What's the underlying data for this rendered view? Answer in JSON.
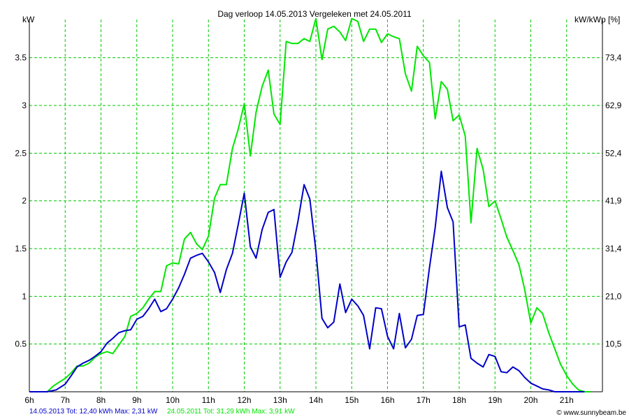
{
  "chart_data": {
    "type": "line",
    "title": "Dag  verloop 14.05.2013   Vergeleken met 24.05.2011",
    "ylabel_left": "kW",
    "ylabel_right": "kW/kWp [%]",
    "x_tick_labels": [
      "6h",
      "7h",
      "8h",
      "9h",
      "10h",
      "11h",
      "12h",
      "13h",
      "14h",
      "15h",
      "16h",
      "17h",
      "18h",
      "19h",
      "20h",
      "21h"
    ],
    "x_tick_hours": [
      6,
      7,
      8,
      9,
      10,
      11,
      12,
      13,
      14,
      15,
      16,
      17,
      18,
      19,
      20,
      21
    ],
    "xlim": [
      6,
      22
    ],
    "ylim": [
      0,
      3.9
    ],
    "y_tick_values": [
      0.5,
      1,
      1.5,
      2,
      2.5,
      3,
      3.5
    ],
    "y_tick_labels": [
      "0.5",
      "1",
      "1.5",
      "2",
      "2.5",
      "3",
      "3.5"
    ],
    "y_right_tick_labels": [
      "10,5",
      "21,0",
      "31,4",
      "41,9",
      "52,4",
      "62,9",
      "73,4"
    ],
    "grid": true,
    "colors": {
      "series_2013": "#0000c8",
      "series_2011": "#00e600",
      "grid": "#00c800",
      "footer_site": "#000000"
    },
    "series": [
      {
        "name": "14.05.2013",
        "color": "#0000c8",
        "x": [
          6.0,
          6.5,
          6.75,
          7.0,
          7.17,
          7.33,
          7.5,
          7.67,
          7.83,
          8.0,
          8.17,
          8.33,
          8.5,
          8.67,
          8.83,
          9.0,
          9.17,
          9.33,
          9.5,
          9.67,
          9.83,
          10.0,
          10.17,
          10.33,
          10.5,
          10.67,
          10.83,
          11.0,
          11.17,
          11.33,
          11.5,
          11.67,
          11.83,
          12.0,
          12.17,
          12.33,
          12.5,
          12.67,
          12.83,
          13.0,
          13.17,
          13.33,
          13.5,
          13.67,
          13.83,
          14.0,
          14.17,
          14.33,
          14.5,
          14.67,
          14.83,
          15.0,
          15.17,
          15.33,
          15.5,
          15.67,
          15.83,
          16.0,
          16.17,
          16.33,
          16.5,
          16.67,
          16.83,
          17.0,
          17.17,
          17.33,
          17.5,
          17.67,
          17.83,
          18.0,
          18.17,
          18.33,
          18.5,
          18.67,
          18.83,
          19.0,
          19.17,
          19.33,
          19.5,
          19.67,
          19.83,
          20.0,
          20.17,
          20.33,
          20.5,
          20.67,
          20.83,
          21.0,
          21.5
        ],
        "y": [
          0,
          0,
          0.02,
          0.08,
          0.17,
          0.26,
          0.3,
          0.33,
          0.37,
          0.42,
          0.51,
          0.56,
          0.62,
          0.64,
          0.65,
          0.76,
          0.79,
          0.87,
          0.97,
          0.84,
          0.87,
          0.97,
          1.09,
          1.23,
          1.4,
          1.43,
          1.45,
          1.36,
          1.25,
          1.04,
          1.28,
          1.45,
          1.75,
          2.08,
          1.52,
          1.4,
          1.7,
          1.88,
          1.91,
          1.2,
          1.36,
          1.46,
          1.79,
          2.17,
          2.02,
          1.48,
          0.77,
          0.67,
          0.73,
          1.13,
          0.83,
          0.97,
          0.9,
          0.8,
          0.45,
          0.88,
          0.87,
          0.58,
          0.45,
          0.82,
          0.46,
          0.55,
          0.8,
          0.81,
          1.3,
          1.72,
          2.31,
          1.93,
          1.78,
          0.68,
          0.7,
          0.35,
          0.3,
          0.26,
          0.39,
          0.37,
          0.21,
          0.2,
          0.26,
          0.22,
          0.15,
          0.09,
          0.06,
          0.03,
          0.02,
          0,
          0,
          0,
          0
        ]
      },
      {
        "name": "24.05.2011",
        "color": "#00e600",
        "x": [
          6.0,
          6.5,
          6.67,
          6.83,
          7.0,
          7.17,
          7.33,
          7.5,
          7.67,
          7.83,
          8.0,
          8.17,
          8.33,
          8.5,
          8.67,
          8.83,
          9.0,
          9.17,
          9.33,
          9.5,
          9.67,
          9.83,
          10.0,
          10.17,
          10.33,
          10.5,
          10.67,
          10.83,
          11.0,
          11.17,
          11.33,
          11.5,
          11.67,
          11.83,
          12.0,
          12.17,
          12.33,
          12.5,
          12.67,
          12.83,
          13.0,
          13.17,
          13.33,
          13.5,
          13.67,
          13.83,
          14.0,
          14.17,
          14.33,
          14.5,
          14.67,
          14.83,
          15.0,
          15.17,
          15.33,
          15.5,
          15.67,
          15.83,
          16.0,
          16.17,
          16.33,
          16.5,
          16.67,
          16.83,
          17.0,
          17.17,
          17.33,
          17.5,
          17.67,
          17.83,
          18.0,
          18.17,
          18.33,
          18.5,
          18.67,
          18.83,
          19.0,
          19.17,
          19.33,
          19.5,
          19.67,
          19.83,
          20.0,
          20.17,
          20.33,
          20.5,
          20.67,
          20.83,
          21.0,
          21.17,
          21.33,
          21.5,
          21.67
        ],
        "y": [
          0,
          0,
          0.06,
          0.1,
          0.14,
          0.2,
          0.27,
          0.27,
          0.3,
          0.36,
          0.4,
          0.42,
          0.4,
          0.49,
          0.58,
          0.79,
          0.82,
          0.88,
          0.97,
          1.05,
          1.05,
          1.32,
          1.35,
          1.34,
          1.6,
          1.67,
          1.55,
          1.49,
          1.63,
          2.03,
          2.17,
          2.17,
          2.55,
          2.75,
          3.02,
          2.47,
          2.93,
          3.2,
          3.37,
          2.91,
          2.8,
          3.67,
          3.65,
          3.65,
          3.7,
          3.67,
          3.91,
          3.48,
          3.8,
          3.83,
          3.77,
          3.68,
          3.91,
          3.88,
          3.67,
          3.8,
          3.8,
          3.66,
          3.75,
          3.72,
          3.7,
          3.33,
          3.15,
          3.62,
          3.52,
          3.45,
          2.86,
          3.25,
          3.17,
          2.84,
          2.9,
          2.68,
          1.77,
          2.55,
          2.33,
          1.94,
          2.0,
          1.81,
          1.62,
          1.48,
          1.33,
          1.07,
          0.72,
          0.88,
          0.82,
          0.62,
          0.45,
          0.29,
          0.17,
          0.08,
          0.02,
          0,
          0
        ]
      }
    ]
  },
  "footer": {
    "series1_text": "14.05.2013 Tot: 12,40 kWh Max: 2,31 kW",
    "series2_text": "24.05.2011 Tot: 31,29 kWh Max: 3,91 kW",
    "site_text": "© www.sunnybeam.be"
  }
}
